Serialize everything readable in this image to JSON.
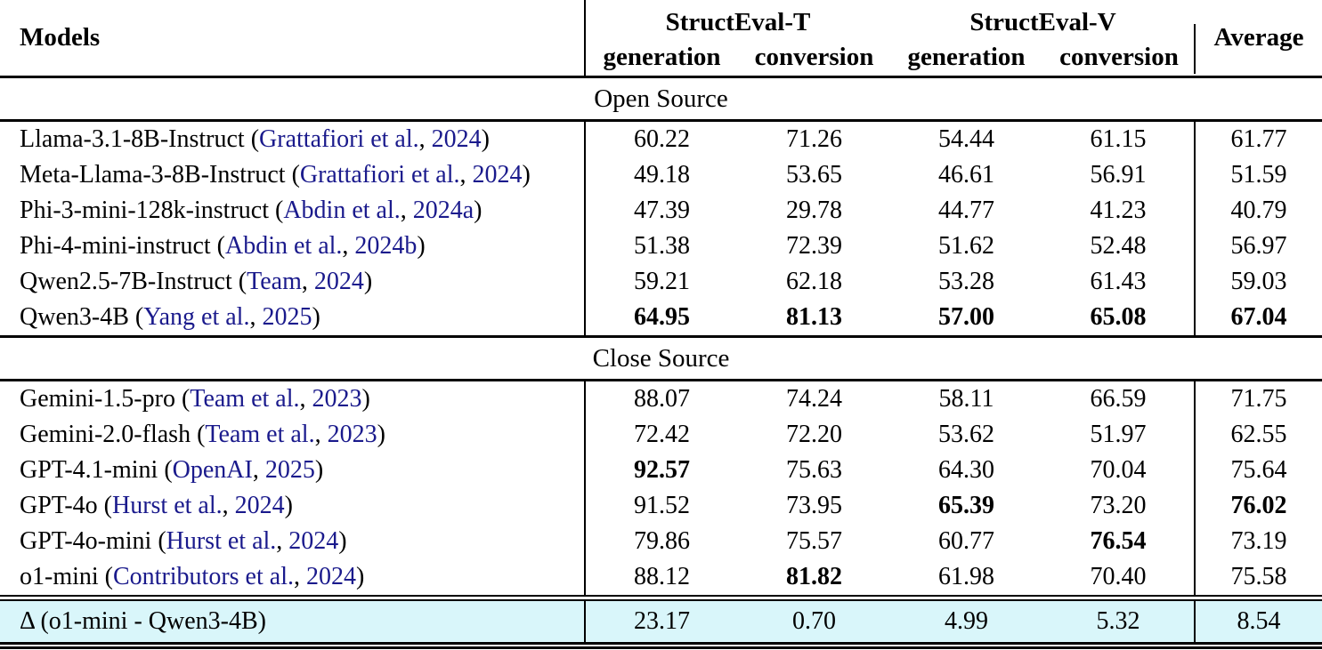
{
  "table": {
    "colors": {
      "citation": "#1a1a8c",
      "delta_row_bg": "#d9f6fa",
      "rule": "#000000"
    },
    "header": {
      "models": "Models",
      "groups": [
        {
          "title": "StructEval-T",
          "subs": [
            "generation",
            "conversion"
          ]
        },
        {
          "title": "StructEval-V",
          "subs": [
            "generation",
            "conversion"
          ]
        }
      ],
      "average": "Average"
    },
    "sections": [
      {
        "title": "Open Source",
        "rows": [
          {
            "name": "Llama-3.1-8B-Instruct",
            "cite_author": "Grattafiori et al.",
            "cite_year": "2024",
            "values": [
              "60.22",
              "71.26",
              "54.44",
              "61.15"
            ],
            "average": "61.77",
            "bold_values": [
              false,
              false,
              false,
              false
            ],
            "bold_average": false
          },
          {
            "name": "Meta-Llama-3-8B-Instruct",
            "cite_author": "Grattafiori et al.",
            "cite_year": "2024",
            "values": [
              "49.18",
              "53.65",
              "46.61",
              "56.91"
            ],
            "average": "51.59",
            "bold_values": [
              false,
              false,
              false,
              false
            ],
            "bold_average": false
          },
          {
            "name": "Phi-3-mini-128k-instruct",
            "cite_author": "Abdin et al.",
            "cite_year": "2024a",
            "values": [
              "47.39",
              "29.78",
              "44.77",
              "41.23"
            ],
            "average": "40.79",
            "bold_values": [
              false,
              false,
              false,
              false
            ],
            "bold_average": false
          },
          {
            "name": "Phi-4-mini-instruct",
            "cite_author": "Abdin et al.",
            "cite_year": "2024b",
            "values": [
              "51.38",
              "72.39",
              "51.62",
              "52.48"
            ],
            "average": "56.97",
            "bold_values": [
              false,
              false,
              false,
              false
            ],
            "bold_average": false
          },
          {
            "name": "Qwen2.5-7B-Instruct",
            "cite_author": "Team",
            "cite_year": "2024",
            "values": [
              "59.21",
              "62.18",
              "53.28",
              "61.43"
            ],
            "average": "59.03",
            "bold_values": [
              false,
              false,
              false,
              false
            ],
            "bold_average": false
          },
          {
            "name": "Qwen3-4B",
            "cite_author": "Yang et al.",
            "cite_year": "2025",
            "values": [
              "64.95",
              "81.13",
              "57.00",
              "65.08"
            ],
            "average": "67.04",
            "bold_values": [
              true,
              true,
              true,
              true
            ],
            "bold_average": true
          }
        ]
      },
      {
        "title": "Close Source",
        "rows": [
          {
            "name": "Gemini-1.5-pro",
            "cite_author": "Team et al.",
            "cite_year": "2023",
            "values": [
              "88.07",
              "74.24",
              "58.11",
              "66.59"
            ],
            "average": "71.75",
            "bold_values": [
              false,
              false,
              false,
              false
            ],
            "bold_average": false
          },
          {
            "name": "Gemini-2.0-flash",
            "cite_author": "Team et al.",
            "cite_year": "2023",
            "values": [
              "72.42",
              "72.20",
              "53.62",
              "51.97"
            ],
            "average": "62.55",
            "bold_values": [
              false,
              false,
              false,
              false
            ],
            "bold_average": false
          },
          {
            "name": "GPT-4.1-mini",
            "cite_author": "OpenAI",
            "cite_year": "2025",
            "values": [
              "92.57",
              "75.63",
              "64.30",
              "70.04"
            ],
            "average": "75.64",
            "bold_values": [
              true,
              false,
              false,
              false
            ],
            "bold_average": false
          },
          {
            "name": "GPT-4o",
            "cite_author": "Hurst et al.",
            "cite_year": "2024",
            "values": [
              "91.52",
              "73.95",
              "65.39",
              "73.20"
            ],
            "average": "76.02",
            "bold_values": [
              false,
              false,
              true,
              false
            ],
            "bold_average": true
          },
          {
            "name": "GPT-4o-mini",
            "cite_author": "Hurst et al.",
            "cite_year": "2024",
            "values": [
              "79.86",
              "75.57",
              "60.77",
              "76.54"
            ],
            "average": "73.19",
            "bold_values": [
              false,
              false,
              false,
              true
            ],
            "bold_average": false
          },
          {
            "name": "o1-mini",
            "cite_author": "Contributors et al.",
            "cite_year": "2024",
            "values": [
              "88.12",
              "81.82",
              "61.98",
              "70.40"
            ],
            "average": "75.58",
            "bold_values": [
              false,
              true,
              false,
              false
            ],
            "bold_average": false
          }
        ]
      }
    ],
    "delta": {
      "label": "Δ (o1-mini - Qwen3-4B)",
      "values": [
        "23.17",
        "0.70",
        "4.99",
        "5.32"
      ],
      "average": "8.54"
    }
  }
}
